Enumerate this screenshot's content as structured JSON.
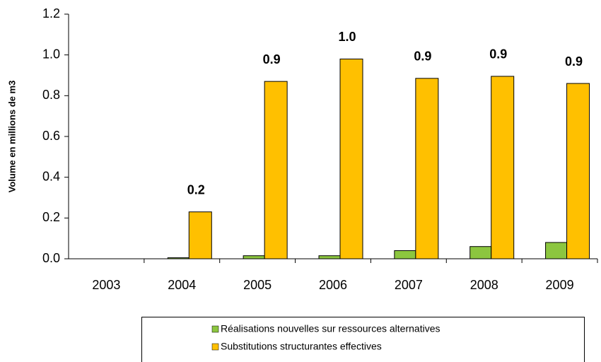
{
  "chart_data": {
    "type": "bar",
    "y_label": "Volume en millions de m3",
    "categories": [
      "2003",
      "2004",
      "2005",
      "2006",
      "2007",
      "2008",
      "2009"
    ],
    "series": [
      {
        "name": "Réalisations nouvelles sur ressources alternatives",
        "color": "#8cc63f",
        "values": [
          0,
          0.005,
          0.015,
          0.015,
          0.04,
          0.06,
          0.08
        ]
      },
      {
        "name": "Substitutions structurantes effectives",
        "color": "#ffc000",
        "values": [
          0,
          0.23,
          0.87,
          0.98,
          0.885,
          0.895,
          0.86
        ],
        "value_labels": [
          null,
          "0.2",
          "0.9",
          "1.0",
          "0.9",
          "0.9",
          "0.9"
        ]
      }
    ],
    "ylim": [
      0,
      1.2
    ],
    "yticks": [
      {
        "value": 0,
        "label": "0.0"
      },
      0.2,
      0.4,
      0.6,
      0.8,
      {
        "value": 1,
        "label": "1.0"
      },
      1.2
    ],
    "grid": false
  }
}
